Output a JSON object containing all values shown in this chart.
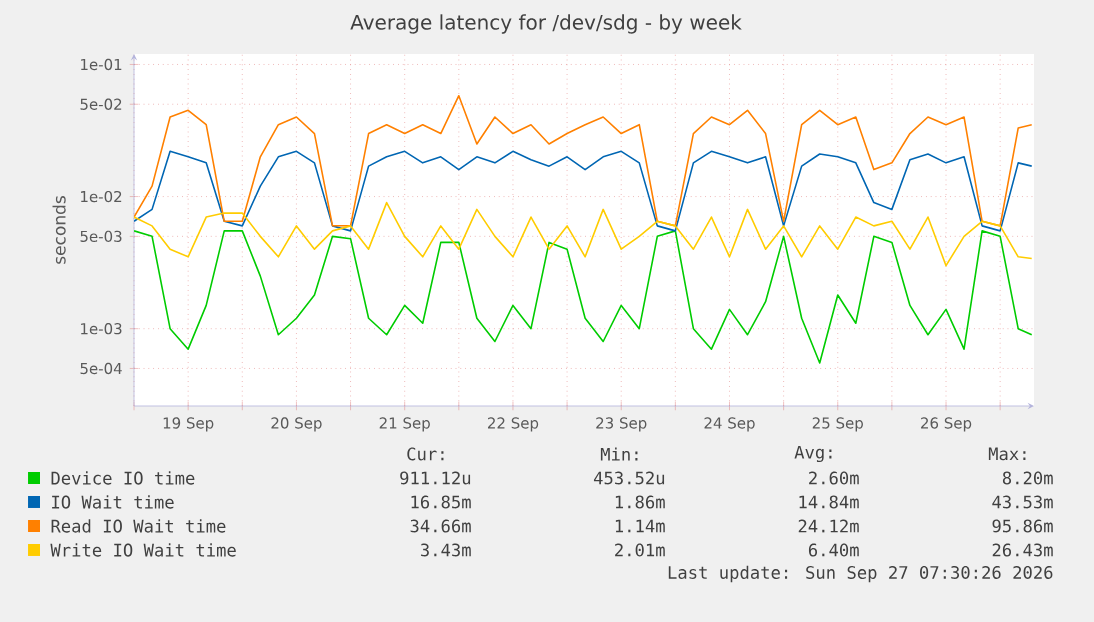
{
  "chart_data": {
    "type": "line",
    "title": "Average latency for /dev/sdg - by week",
    "ylabel": "seconds",
    "x": [
      "2026-09-19T00:00",
      "2026-09-19T04:00",
      "2026-09-19T08:00",
      "2026-09-19T12:00",
      "2026-09-19T16:00",
      "2026-09-19T20:00",
      "2026-09-20T00:00",
      "2026-09-20T04:00",
      "2026-09-20T08:00",
      "2026-09-20T12:00",
      "2026-09-20T16:00",
      "2026-09-20T20:00",
      "2026-09-21T00:00",
      "2026-09-21T04:00",
      "2026-09-21T08:00",
      "2026-09-21T12:00",
      "2026-09-21T16:00",
      "2026-09-21T20:00",
      "2026-09-22T00:00",
      "2026-09-22T04:00",
      "2026-09-22T08:00",
      "2026-09-22T12:00",
      "2026-09-22T16:00",
      "2026-09-22T20:00",
      "2026-09-23T00:00",
      "2026-09-23T04:00",
      "2026-09-23T08:00",
      "2026-09-23T12:00",
      "2026-09-23T16:00",
      "2026-09-23T20:00",
      "2026-09-24T00:00",
      "2026-09-24T04:00",
      "2026-09-24T08:00",
      "2026-09-24T12:00",
      "2026-09-24T16:00",
      "2026-09-24T20:00",
      "2026-09-25T00:00",
      "2026-09-25T04:00",
      "2026-09-25T08:00",
      "2026-09-25T12:00",
      "2026-09-25T16:00",
      "2026-09-25T20:00",
      "2026-09-26T00:00",
      "2026-09-26T04:00",
      "2026-09-26T08:00",
      "2026-09-26T12:00",
      "2026-09-26T16:00",
      "2026-09-26T20:00",
      "2026-09-27T00:00",
      "2026-09-27T04:00",
      "2026-09-27T07:00"
    ],
    "series": [
      {
        "name": "Device IO time",
        "color": "#00cc00",
        "values": [
          0.0055,
          0.005,
          0.001,
          0.0007,
          0.0015,
          0.0055,
          0.0055,
          0.0025,
          0.0009,
          0.0012,
          0.0018,
          0.005,
          0.0048,
          0.0012,
          0.0009,
          0.0015,
          0.0011,
          0.0045,
          0.0045,
          0.0012,
          0.0008,
          0.0015,
          0.001,
          0.0045,
          0.004,
          0.0012,
          0.0008,
          0.0015,
          0.001,
          0.005,
          0.0055,
          0.001,
          0.0007,
          0.0014,
          0.0009,
          0.0016,
          0.005,
          0.0012,
          0.00055,
          0.0018,
          0.0011,
          0.005,
          0.0045,
          0.0015,
          0.0009,
          0.0014,
          0.0007,
          0.0055,
          0.005,
          0.001,
          0.0009
        ]
      },
      {
        "name": "IO Wait time",
        "color": "#0066b3",
        "values": [
          0.0065,
          0.008,
          0.022,
          0.02,
          0.018,
          0.0065,
          0.006,
          0.012,
          0.02,
          0.022,
          0.018,
          0.006,
          0.0055,
          0.017,
          0.02,
          0.022,
          0.018,
          0.02,
          0.016,
          0.02,
          0.018,
          0.022,
          0.019,
          0.017,
          0.02,
          0.016,
          0.02,
          0.022,
          0.018,
          0.006,
          0.0055,
          0.018,
          0.022,
          0.02,
          0.018,
          0.02,
          0.006,
          0.017,
          0.021,
          0.02,
          0.018,
          0.009,
          0.008,
          0.019,
          0.021,
          0.018,
          0.02,
          0.006,
          0.0055,
          0.018,
          0.017
        ]
      },
      {
        "name": "Read IO Wait time",
        "color": "#ff8000",
        "values": [
          0.007,
          0.012,
          0.04,
          0.045,
          0.035,
          0.0065,
          0.0065,
          0.02,
          0.035,
          0.04,
          0.03,
          0.006,
          0.006,
          0.03,
          0.035,
          0.03,
          0.035,
          0.03,
          0.058,
          0.025,
          0.04,
          0.03,
          0.035,
          0.025,
          0.03,
          0.035,
          0.04,
          0.03,
          0.035,
          0.0065,
          0.006,
          0.03,
          0.04,
          0.035,
          0.045,
          0.03,
          0.0065,
          0.035,
          0.045,
          0.035,
          0.04,
          0.016,
          0.018,
          0.03,
          0.04,
          0.035,
          0.04,
          0.0065,
          0.006,
          0.033,
          0.035
        ]
      },
      {
        "name": "Write IO Wait time",
        "color": "#ffcc00",
        "values": [
          0.007,
          0.006,
          0.004,
          0.0035,
          0.007,
          0.0075,
          0.0075,
          0.005,
          0.0035,
          0.006,
          0.004,
          0.0055,
          0.006,
          0.004,
          0.009,
          0.005,
          0.0035,
          0.006,
          0.004,
          0.008,
          0.005,
          0.0035,
          0.007,
          0.004,
          0.006,
          0.0035,
          0.008,
          0.004,
          0.005,
          0.0065,
          0.006,
          0.004,
          0.007,
          0.0035,
          0.008,
          0.004,
          0.006,
          0.0035,
          0.006,
          0.004,
          0.007,
          0.006,
          0.0065,
          0.004,
          0.007,
          0.003,
          0.005,
          0.0065,
          0.006,
          0.0035,
          0.0034
        ]
      }
    ],
    "xlim": [
      "2026-09-19T00:00",
      "2026-09-27T07:30"
    ],
    "xticks": [
      {
        "value": "2026-09-19T00:00",
        "label": null
      },
      {
        "value": "2026-09-19T12:00",
        "label": "19 Sep"
      },
      {
        "value": "2026-09-20T00:00",
        "label": null
      },
      {
        "value": "2026-09-20T12:00",
        "label": "20 Sep"
      },
      {
        "value": "2026-09-21T00:00",
        "label": null
      },
      {
        "value": "2026-09-21T12:00",
        "label": "21 Sep"
      },
      {
        "value": "2026-09-22T00:00",
        "label": null
      },
      {
        "value": "2026-09-22T12:00",
        "label": "22 Sep"
      },
      {
        "value": "2026-09-23T00:00",
        "label": null
      },
      {
        "value": "2026-09-23T12:00",
        "label": "23 Sep"
      },
      {
        "value": "2026-09-24T00:00",
        "label": null
      },
      {
        "value": "2026-09-24T12:00",
        "label": "24 Sep"
      },
      {
        "value": "2026-09-25T00:00",
        "label": null
      },
      {
        "value": "2026-09-25T12:00",
        "label": "25 Sep"
      },
      {
        "value": "2026-09-26T00:00",
        "label": null
      },
      {
        "value": "2026-09-26T12:00",
        "label": "26 Sep"
      },
      {
        "value": "2026-09-27T00:00",
        "label": null
      }
    ],
    "ylim": [
      0.00026,
      0.12
    ],
    "yticks": [
      {
        "value": 0.0005,
        "label": "5e-04"
      },
      {
        "value": 0.001,
        "label": "1e-03"
      },
      {
        "value": 0.005,
        "label": "5e-03"
      },
      {
        "value": 0.01,
        "label": "1e-02"
      },
      {
        "value": 0.05,
        "label": "5e-02"
      },
      {
        "value": 0.1,
        "label": "1e-01"
      }
    ],
    "log": true,
    "grid": true,
    "legend": "bottom",
    "annotations": [
      "Cur:",
      "Min:",
      "Avg:",
      "Max:",
      "911.12u",
      "453.52u",
      "2.60m",
      "8.20m",
      "16.85m",
      "1.86m",
      "14.84m",
      "43.53m",
      "34.66m",
      "1.14m",
      "24.12m",
      "95.86m",
      "3.43m",
      "2.01m",
      "6.40m",
      "26.43m",
      "Last update: Sun Sep 27 07:30:26 2026"
    ]
  }
}
